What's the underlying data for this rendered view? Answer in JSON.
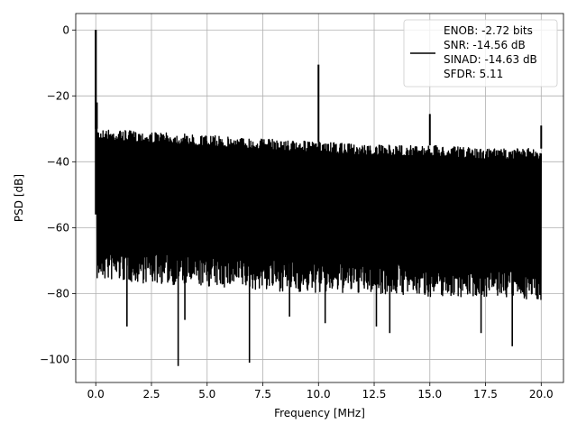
{
  "chart_data": {
    "type": "line",
    "title": "",
    "xlabel": "Frequency [MHz]",
    "ylabel": "PSD [dB]",
    "xlim": [
      -0.9,
      21.0
    ],
    "ylim": [
      -107,
      5
    ],
    "xticks": [
      0.0,
      2.5,
      5.0,
      7.5,
      10.0,
      12.5,
      15.0,
      17.5,
      20.0
    ],
    "xtick_labels": [
      "0.0",
      "2.5",
      "5.0",
      "7.5",
      "10.0",
      "12.5",
      "15.0",
      "17.5",
      "20.0"
    ],
    "yticks": [
      0,
      -20,
      -40,
      -60,
      -80,
      -100
    ],
    "ytick_labels": [
      "0",
      "−20",
      "−40",
      "−60",
      "−80",
      "−100"
    ],
    "grid": true,
    "legend_position": "top-right",
    "series": [
      {
        "color": "#000000",
        "noise_floor_envelope": {
          "x": [
            0.05,
            2.5,
            5.0,
            7.5,
            10.0,
            12.5,
            15.0,
            17.5,
            20.0
          ],
          "upper": [
            -30,
            -31,
            -32,
            -33,
            -34,
            -35,
            -35,
            -36,
            -36
          ],
          "lower": [
            -66,
            -67,
            -68,
            -69,
            -70,
            -70,
            -71,
            -71,
            -72
          ]
        },
        "peaks": [
          {
            "x": 0.0,
            "y": 0
          },
          {
            "x": 0.05,
            "y": -22
          },
          {
            "x": 10.0,
            "y": -10.5
          },
          {
            "x": 15.0,
            "y": -25.5
          },
          {
            "x": 20.0,
            "y": -29
          }
        ],
        "deep_nulls": [
          {
            "x": 1.4,
            "y": -90
          },
          {
            "x": 3.7,
            "y": -102
          },
          {
            "x": 4.0,
            "y": -88
          },
          {
            "x": 6.9,
            "y": -101
          },
          {
            "x": 8.7,
            "y": -87
          },
          {
            "x": 10.3,
            "y": -89
          },
          {
            "x": 12.6,
            "y": -90
          },
          {
            "x": 13.2,
            "y": -92
          },
          {
            "x": 17.3,
            "y": -92
          },
          {
            "x": 18.7,
            "y": -96
          }
        ]
      }
    ],
    "legend": {
      "lines": [
        "ENOB: -2.72 bits",
        "SNR: -14.56 dB",
        "SINAD: -14.63 dB",
        "SFDR: 5.11"
      ]
    }
  }
}
